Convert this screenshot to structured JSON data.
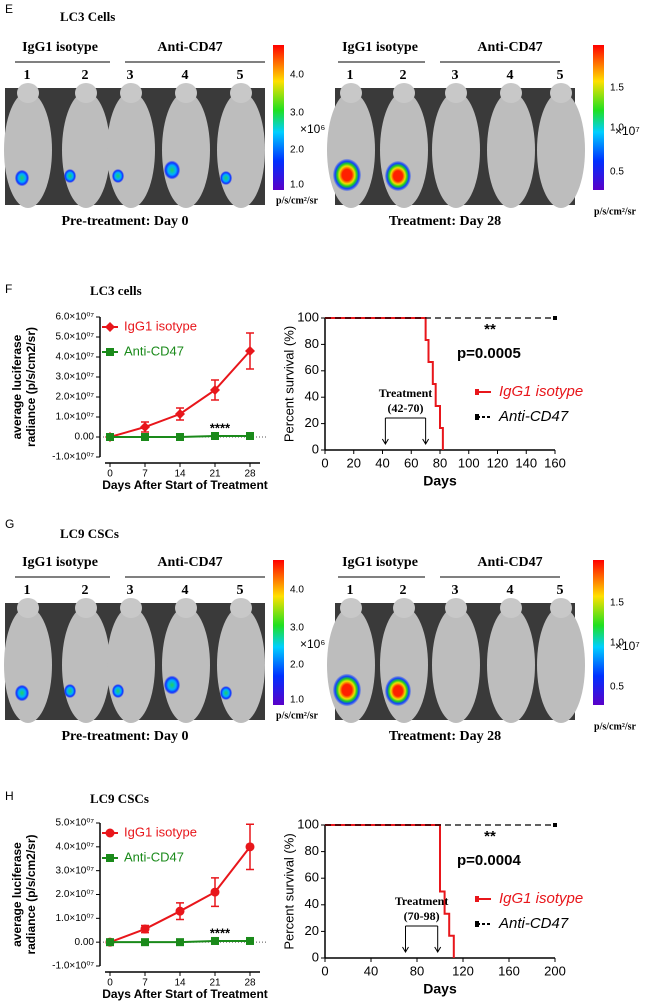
{
  "panels": [
    {
      "label": "E",
      "title": "LC3 Cells",
      "images": [
        {
          "groups": [
            "IgG1 isotype",
            "Anti-CD47"
          ],
          "numbers": [
            "1",
            "2",
            "3",
            "4",
            "5"
          ],
          "colorbar_ticks": [
            "4.0",
            "3.0",
            "2.0",
            "1.0"
          ],
          "multiplier": "×10⁶",
          "unit": "p/s/cm²/sr",
          "caption": "Pre-treatment: Day 0"
        },
        {
          "groups": [
            "IgG1 isotype",
            "Anti-CD47"
          ],
          "numbers": [
            "1",
            "2",
            "3",
            "4",
            "5"
          ],
          "colorbar_ticks": [
            "1.5",
            "1.0",
            "0.5"
          ],
          "multiplier": "×10⁷",
          "unit": "p/s/cm²/sr",
          "caption": "Treatment: Day 28"
        }
      ]
    },
    {
      "label": "F",
      "title": "LC3 cells"
    },
    {
      "label": "G",
      "title": "LC9 CSCs",
      "images": [
        {
          "groups": [
            "IgG1 isotype",
            "Anti-CD47"
          ],
          "numbers": [
            "1",
            "2",
            "3",
            "4",
            "5"
          ],
          "colorbar_ticks": [
            "4.0",
            "3.0",
            "2.0",
            "1.0"
          ],
          "multiplier": "×10⁶",
          "unit": "p/s/cm²/sr",
          "caption": "Pre-treatment: Day 0"
        },
        {
          "groups": [
            "IgG1 isotype",
            "Anti-CD47"
          ],
          "numbers": [
            "1",
            "2",
            "3",
            "4",
            "5"
          ],
          "colorbar_ticks": [
            "1.5",
            "1.0",
            "0.5"
          ],
          "multiplier": "×10⁷",
          "unit": "p/s/cm²/sr",
          "caption": "Treatment: Day 28"
        }
      ]
    },
    {
      "label": "H",
      "title": "LC9 CSCs"
    }
  ],
  "chart_data": [
    {
      "type": "line",
      "ylabel": [
        "average luciferase",
        "radiance (p/s/cm2/sr)"
      ],
      "xlabel": "Days After Start of Treatment",
      "x": [
        0,
        7,
        14,
        21,
        28
      ],
      "xlim": [
        -2,
        30
      ],
      "xticks": [
        0,
        7,
        14,
        21,
        28
      ],
      "ylim": [
        -10000000,
        60000000
      ],
      "yticks": [
        {
          "value": 60000000,
          "label": "6.0×10⁰⁷"
        },
        {
          "value": 50000000,
          "label": "5.0×10⁰⁷"
        },
        {
          "value": 40000000,
          "label": "4.0×10⁰⁷"
        },
        {
          "value": 30000000,
          "label": "3.0×10⁰⁷"
        },
        {
          "value": 20000000,
          "label": "2.0×10⁰⁷"
        },
        {
          "value": 10000000,
          "label": "1.0×10⁰⁷"
        },
        {
          "value": 0,
          "label": "0.00"
        },
        {
          "value": -10000000,
          "label": "-1.0×10⁰⁷"
        }
      ],
      "series": [
        {
          "name": "IgG1 isotype",
          "color": "#e8161b",
          "marker": "diamond",
          "values": [
            0,
            5000000,
            11500000,
            23500000,
            43000000
          ],
          "errors": [
            500000,
            2500000,
            3000000,
            5000000,
            9000000
          ]
        },
        {
          "name": "Anti-CD47",
          "color": "#1a8a1a",
          "marker": "square",
          "values": [
            0,
            0,
            0,
            500000,
            500000
          ],
          "errors": [
            300000,
            300000,
            300000,
            300000,
            300000
          ]
        }
      ],
      "annotation": "****"
    },
    {
      "type": "step",
      "ylabel": "Percent survival (%)",
      "xlabel": "Days",
      "xlim": [
        0,
        160
      ],
      "xticks": [
        0,
        20,
        40,
        60,
        80,
        100,
        120,
        140,
        160
      ],
      "ylim": [
        0,
        100
      ],
      "yticks": [
        0,
        20,
        40,
        60,
        80,
        100
      ],
      "series": [
        {
          "name": "IgG1 isotype",
          "color": "#e8161b",
          "x": [
            0,
            70,
            72,
            75,
            77,
            80,
            82
          ],
          "values": [
            100,
            83.3,
            66.7,
            50,
            33.3,
            16.7,
            0
          ]
        },
        {
          "name": "Anti-CD47",
          "color": "#000000",
          "dashed": true,
          "x": [
            0,
            160
          ],
          "values": [
            100,
            100
          ]
        }
      ],
      "significance": "**",
      "p_value": "p=0.0005",
      "treatment": "Treatment",
      "treatment_range": "(42-70)"
    },
    {
      "type": "line",
      "ylabel": [
        "average luciferase",
        "radiance (p/s/cm2/sr)"
      ],
      "xlabel": "Days After Start of Treatment",
      "x": [
        0,
        7,
        14,
        21,
        28
      ],
      "xlim": [
        -2,
        30
      ],
      "xticks": [
        0,
        7,
        14,
        21,
        28
      ],
      "ylim": [
        -10000000,
        50000000
      ],
      "yticks": [
        {
          "value": 50000000,
          "label": "5.0×10⁰⁷"
        },
        {
          "value": 40000000,
          "label": "4.0×10⁰⁷"
        },
        {
          "value": 30000000,
          "label": "3.0×10⁰⁷"
        },
        {
          "value": 20000000,
          "label": "2.0×10⁰⁷"
        },
        {
          "value": 10000000,
          "label": "1.0×10⁰⁷"
        },
        {
          "value": 0,
          "label": "0.00"
        },
        {
          "value": -10000000,
          "label": "-1.0×10⁰⁷"
        }
      ],
      "series": [
        {
          "name": "IgG1 isotype",
          "color": "#e8161b",
          "marker": "circle",
          "values": [
            0,
            5500000,
            13000000,
            21000000,
            40000000
          ],
          "errors": [
            500000,
            1500000,
            3500000,
            6000000,
            9500000
          ]
        },
        {
          "name": "Anti-CD47",
          "color": "#1a8a1a",
          "marker": "square",
          "values": [
            0,
            0,
            0,
            500000,
            500000
          ],
          "errors": [
            300000,
            300000,
            300000,
            300000,
            300000
          ]
        }
      ],
      "annotation": "****"
    },
    {
      "type": "step",
      "ylabel": "Percent survival (%)",
      "xlabel": "Days",
      "xlim": [
        0,
        200
      ],
      "xticks": [
        0,
        40,
        80,
        120,
        160,
        200
      ],
      "ylim": [
        0,
        100
      ],
      "yticks": [
        0,
        20,
        40,
        60,
        80,
        100
      ],
      "series": [
        {
          "name": "IgG1 isotype",
          "color": "#e8161b",
          "x": [
            0,
            100,
            104,
            108,
            112
          ],
          "values": [
            100,
            50,
            33.3,
            16.7,
            0
          ]
        },
        {
          "name": "Anti-CD47",
          "color": "#000000",
          "dashed": true,
          "x": [
            0,
            200
          ],
          "values": [
            100,
            100
          ]
        }
      ],
      "significance": "**",
      "p_value": "p=0.0004",
      "treatment": "Treatment",
      "treatment_range": "(70-98)"
    }
  ]
}
